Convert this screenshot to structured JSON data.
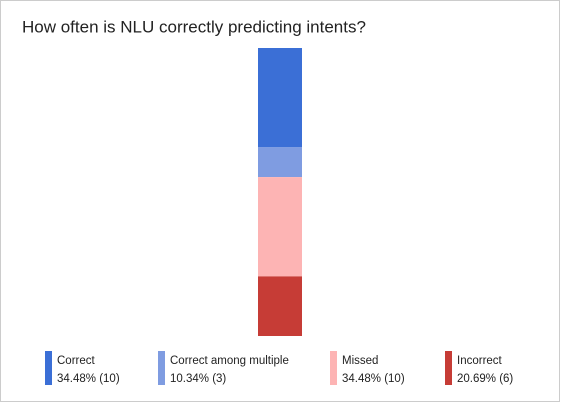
{
  "chart_data": {
    "type": "stacked-bar",
    "title": "How often is NLU correctly predicting intents?",
    "series": [
      {
        "name": "Correct",
        "color": "#3b6fd6",
        "values": [
          34.48
        ],
        "value_labels": [
          "34.48% (10)"
        ]
      },
      {
        "name": "Correct among multiple",
        "color": "#7f9ce1",
        "values": [
          10.34
        ],
        "value_labels": [
          "10.34% (3)"
        ]
      },
      {
        "name": "Missed",
        "color": "#fdb4b4",
        "values": [
          34.48
        ],
        "value_labels": [
          "34.48% (10)"
        ]
      },
      {
        "name": "Incorrect",
        "color": "#c63c36",
        "values": [
          20.69
        ],
        "value_labels": [
          "20.69% (6)"
        ]
      }
    ]
  }
}
